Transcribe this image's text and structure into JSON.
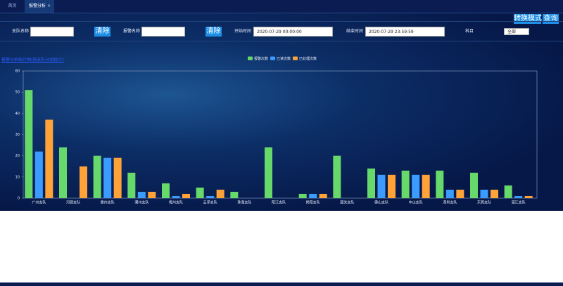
{
  "tabs": [
    {
      "label": "首页"
    },
    {
      "label": "报警分析",
      "close": "×"
    }
  ],
  "buttons": {
    "switch_mode": "转换模式",
    "query": "查询"
  },
  "filters": {
    "unit_label": "支队名称",
    "clear_1": "清除",
    "alarm_label": "报警名称",
    "clear_2": "清除",
    "start_label": "开始时间",
    "start_value": "2020-07-29 00:00:00",
    "end_label": "结束时间",
    "end_value": "2020-07-29 23:59:59",
    "subject_label": "科目",
    "subject_value": "全部"
  },
  "link": "报警分析统计图(按支队分组统计)",
  "chart_data": {
    "type": "bar",
    "categories": [
      "广州支队",
      "河源支队",
      "惠州支队",
      "潮州支队",
      "梅州支队",
      "云浮支队",
      "珠海支队",
      "阳江支队",
      "揭阳支队",
      "韶关支队",
      "佛山支队",
      "中山支队",
      "深圳支队",
      "东莞支队",
      "湛江支队"
    ],
    "series": [
      {
        "name": "报警次数",
        "color": "#66d96a",
        "values": [
          51,
          24,
          20,
          12,
          7,
          5,
          3,
          24,
          2,
          20,
          14,
          13,
          13,
          12,
          6
        ]
      },
      {
        "name": "已读次数",
        "color": "#3b9bff",
        "values": [
          22,
          0,
          19,
          3,
          1,
          1,
          0,
          0,
          2,
          0,
          11,
          11,
          4,
          4,
          1
        ]
      },
      {
        "name": "已处理次数",
        "color": "#ffa338",
        "values": [
          37,
          15,
          19,
          3,
          2,
          4,
          0,
          0,
          2,
          0,
          11,
          11,
          4,
          4,
          1
        ]
      }
    ],
    "ylim": [
      0,
      60
    ],
    "yticks": [
      0,
      10,
      20,
      30,
      40,
      50,
      60
    ],
    "legend": "top"
  }
}
